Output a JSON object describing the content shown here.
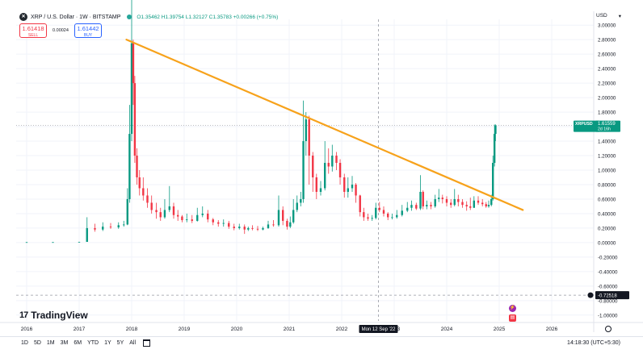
{
  "header": {
    "symbol_title": "XRP / U.S. Dollar · 1W · BITSTAMP",
    "ohlc": "O1.35462 H1.39754 L1.32127 C1.35783 +0.00266 (+0.75%)",
    "sell": {
      "price": "1.61418",
      "label": "SELL"
    },
    "spread": "0.00024",
    "buy": {
      "price": "1.61442",
      "label": "BUY"
    },
    "currency": "USD"
  },
  "price_labels": {
    "symbol_tag": "XRPUSD",
    "last_price": "1.61559",
    "countdown": "2d 16h",
    "crosshair_price": "-0.72518",
    "crosshair_date": "Mon 12 Sep '22"
  },
  "branding": {
    "logo_mark": "17",
    "logo_text": "TradingView"
  },
  "toolbar": {
    "ranges": [
      "1D",
      "5D",
      "1M",
      "3M",
      "6M",
      "YTD",
      "1Y",
      "5Y",
      "All"
    ],
    "clock": "14:18:30 (UTC+5:30)"
  },
  "colors": {
    "up": "#089981",
    "down": "#f23645",
    "trendline": "#f7a21b",
    "last_price_tag": "#089981"
  },
  "chart_data": {
    "type": "candlestick",
    "symbol": "XRPUSD",
    "exchange": "BITSTAMP",
    "interval": "1W",
    "y_axis": {
      "ticks": [
        "3.00000",
        "2.80000",
        "2.60000",
        "2.40000",
        "2.20000",
        "2.00000",
        "1.80000",
        "1.60000",
        "1.40000",
        "1.20000",
        "1.00000",
        "0.80000",
        "0.60000",
        "0.40000",
        "0.20000",
        "0.00000",
        "-0.20000",
        "-0.40000",
        "-0.60000",
        "-0.80000",
        "-1.00000"
      ],
      "range": [
        -1.0,
        3.0
      ]
    },
    "x_axis": {
      "ticks": [
        "2016",
        "2017",
        "2018",
        "2019",
        "2020",
        "2021",
        "2022",
        "2023",
        "2024",
        "2025",
        "2026"
      ],
      "range": [
        2016.0,
        2026.8
      ]
    },
    "series": [
      {
        "x": [
          2016.0,
          2016.5,
          2017.0,
          2017.15,
          2017.3,
          2017.45,
          2017.6,
          2017.75,
          2017.85,
          2017.92,
          2017.96,
          2018.0,
          2018.03,
          2018.06,
          2018.1,
          2018.15,
          2018.22,
          2018.3,
          2018.38,
          2018.47,
          2018.55,
          2018.63,
          2018.72,
          2018.8,
          2018.88,
          2018.96,
          2019.05,
          2019.15,
          2019.25,
          2019.35,
          2019.45,
          2019.55,
          2019.65,
          2019.75,
          2019.85,
          2019.95,
          2020.05,
          2020.15,
          2020.22,
          2020.3,
          2020.4,
          2020.5,
          2020.6,
          2020.7,
          2020.8,
          2020.88,
          2020.96,
          2021.02,
          2021.08,
          2021.15,
          2021.22,
          2021.27,
          2021.32,
          2021.38,
          2021.45,
          2021.52,
          2021.6,
          2021.68,
          2021.75,
          2021.82,
          2021.9,
          2021.97,
          2022.05,
          2022.12,
          2022.2,
          2022.27,
          2022.35,
          2022.42,
          2022.5,
          2022.58,
          2022.65,
          2022.72,
          2022.8,
          2022.88,
          2022.96,
          2023.05,
          2023.15,
          2023.25,
          2023.33,
          2023.42,
          2023.5,
          2023.55,
          2023.62,
          2023.7,
          2023.78,
          2023.85,
          2023.92,
          2024.0,
          2024.08,
          2024.15,
          2024.22,
          2024.3,
          2024.38,
          2024.45,
          2024.52,
          2024.6,
          2024.68,
          2024.75,
          2024.8,
          2024.85,
          2024.88,
          2024.91,
          2024.93
        ],
        "open": [
          0.006,
          0.006,
          0.006,
          0.01,
          0.2,
          0.18,
          0.22,
          0.21,
          0.24,
          0.25,
          0.6,
          1.5,
          2.75,
          2.2,
          1.2,
          0.9,
          0.75,
          0.65,
          0.55,
          0.45,
          0.42,
          0.35,
          0.45,
          0.5,
          0.38,
          0.36,
          0.31,
          0.32,
          0.3,
          0.38,
          0.4,
          0.32,
          0.28,
          0.26,
          0.27,
          0.22,
          0.2,
          0.22,
          0.18,
          0.2,
          0.19,
          0.18,
          0.2,
          0.25,
          0.24,
          0.45,
          0.3,
          0.22,
          0.28,
          0.45,
          0.55,
          0.6,
          1.4,
          1.7,
          1.2,
          0.9,
          0.7,
          0.75,
          1.1,
          1.05,
          1.2,
          1.1,
          0.9,
          0.7,
          0.75,
          0.8,
          0.65,
          0.42,
          0.35,
          0.33,
          0.34,
          0.48,
          0.45,
          0.4,
          0.35,
          0.35,
          0.38,
          0.44,
          0.48,
          0.52,
          0.47,
          0.7,
          0.5,
          0.52,
          0.5,
          0.6,
          0.62,
          0.6,
          0.55,
          0.52,
          0.6,
          0.56,
          0.52,
          0.5,
          0.48,
          0.58,
          0.55,
          0.53,
          0.5,
          0.52,
          0.6,
          1.1,
          1.5
        ],
        "close": [
          0.006,
          0.006,
          0.01,
          0.2,
          0.18,
          0.22,
          0.21,
          0.24,
          0.25,
          0.6,
          1.5,
          2.75,
          2.2,
          1.2,
          0.9,
          0.75,
          0.65,
          0.55,
          0.45,
          0.42,
          0.35,
          0.45,
          0.5,
          0.38,
          0.36,
          0.31,
          0.32,
          0.3,
          0.38,
          0.4,
          0.32,
          0.28,
          0.26,
          0.27,
          0.22,
          0.2,
          0.22,
          0.18,
          0.2,
          0.19,
          0.18,
          0.2,
          0.25,
          0.24,
          0.45,
          0.3,
          0.22,
          0.28,
          0.45,
          0.55,
          0.6,
          1.4,
          1.7,
          1.2,
          0.9,
          0.7,
          0.75,
          1.1,
          1.05,
          1.2,
          1.1,
          0.9,
          0.7,
          0.75,
          0.8,
          0.65,
          0.42,
          0.35,
          0.33,
          0.34,
          0.48,
          0.45,
          0.4,
          0.35,
          0.35,
          0.38,
          0.44,
          0.48,
          0.52,
          0.47,
          0.7,
          0.5,
          0.52,
          0.5,
          0.6,
          0.62,
          0.6,
          0.55,
          0.52,
          0.6,
          0.56,
          0.52,
          0.5,
          0.48,
          0.58,
          0.55,
          0.53,
          0.5,
          0.52,
          0.6,
          1.1,
          1.5,
          1.61559
        ],
        "high": [
          0.007,
          0.007,
          0.011,
          0.35,
          0.26,
          0.28,
          0.27,
          0.28,
          0.3,
          0.75,
          1.9,
          3.4,
          2.8,
          2.3,
          1.3,
          1.0,
          0.9,
          0.75,
          0.65,
          0.55,
          0.48,
          0.6,
          0.78,
          0.55,
          0.45,
          0.38,
          0.4,
          0.38,
          0.48,
          0.5,
          0.45,
          0.34,
          0.31,
          0.32,
          0.3,
          0.26,
          0.26,
          0.25,
          0.22,
          0.24,
          0.23,
          0.22,
          0.3,
          0.31,
          0.65,
          0.5,
          0.33,
          0.36,
          0.6,
          0.65,
          0.7,
          1.96,
          1.8,
          1.75,
          1.25,
          0.95,
          0.85,
          1.4,
          1.3,
          1.35,
          1.25,
          1.15,
          0.95,
          0.9,
          0.92,
          0.82,
          0.66,
          0.48,
          0.4,
          0.38,
          0.55,
          0.56,
          0.5,
          0.42,
          0.4,
          0.45,
          0.52,
          0.56,
          0.58,
          0.55,
          0.93,
          0.72,
          0.58,
          0.56,
          0.66,
          0.74,
          0.66,
          0.64,
          0.6,
          0.74,
          0.66,
          0.6,
          0.57,
          0.62,
          0.64,
          0.64,
          0.6,
          0.56,
          0.58,
          0.66,
          1.2,
          1.63,
          1.63
        ],
        "low": [
          0.005,
          0.005,
          0.005,
          0.01,
          0.15,
          0.16,
          0.19,
          0.19,
          0.22,
          0.24,
          0.55,
          1.4,
          1.9,
          1.1,
          0.8,
          0.65,
          0.58,
          0.48,
          0.4,
          0.33,
          0.3,
          0.33,
          0.42,
          0.33,
          0.3,
          0.28,
          0.28,
          0.27,
          0.29,
          0.35,
          0.28,
          0.24,
          0.22,
          0.22,
          0.19,
          0.17,
          0.18,
          0.12,
          0.16,
          0.17,
          0.16,
          0.17,
          0.19,
          0.22,
          0.22,
          0.24,
          0.18,
          0.2,
          0.26,
          0.42,
          0.5,
          0.55,
          1.2,
          0.8,
          0.7,
          0.6,
          0.65,
          0.72,
          0.95,
          0.98,
          1.0,
          0.8,
          0.62,
          0.62,
          0.7,
          0.55,
          0.36,
          0.3,
          0.3,
          0.3,
          0.32,
          0.42,
          0.36,
          0.31,
          0.32,
          0.33,
          0.36,
          0.42,
          0.44,
          0.45,
          0.45,
          0.46,
          0.46,
          0.46,
          0.48,
          0.56,
          0.54,
          0.5,
          0.48,
          0.5,
          0.5,
          0.48,
          0.44,
          0.45,
          0.48,
          0.52,
          0.5,
          0.48,
          0.48,
          0.5,
          0.58,
          1.05,
          1.4
        ]
      }
    ],
    "trendline": {
      "from": {
        "x": 2017.9,
        "y": 2.8
      },
      "to": {
        "x": 2025.45,
        "y": 0.45
      }
    },
    "last_price": 1.61559,
    "grid": true,
    "log_scale": false
  }
}
